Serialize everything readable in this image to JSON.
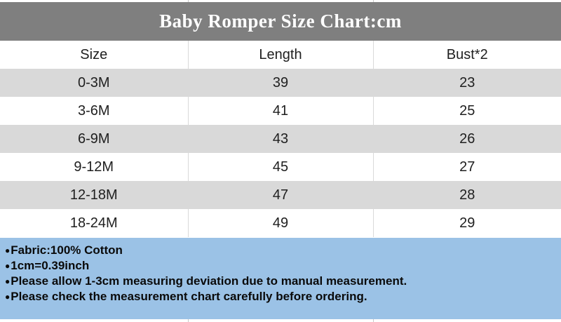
{
  "title": "Baby Romper Size Chart:cm",
  "chart_data": {
    "type": "table",
    "title": "Baby Romper Size Chart:cm",
    "unit": "cm",
    "columns": [
      "Size",
      "Length",
      "Bust*2"
    ],
    "rows": [
      [
        "0-3M",
        "39",
        "23"
      ],
      [
        "3-6M",
        "41",
        "25"
      ],
      [
        "6-9M",
        "43",
        "26"
      ],
      [
        "9-12M",
        "45",
        "27"
      ],
      [
        "12-18M",
        "47",
        "28"
      ],
      [
        "18-24M",
        "49",
        "29"
      ]
    ]
  },
  "notes": {
    "bullet": "●",
    "items": [
      "Fabric:100% Cotton",
      "1cm=0.39inch",
      "Please allow 1-3cm measuring deviation due to manual measurement.",
      "Please check the measurement chart carefully before ordering."
    ]
  },
  "colors": {
    "banner_bg": "#7f7f7f",
    "banner_text": "#ffffff",
    "row_alt_bg": "#d9d9d9",
    "row_bg": "#ffffff",
    "notes_bg": "#9bc2e6",
    "text": "#1f1f1f",
    "gridline": "#d9d9d9"
  }
}
